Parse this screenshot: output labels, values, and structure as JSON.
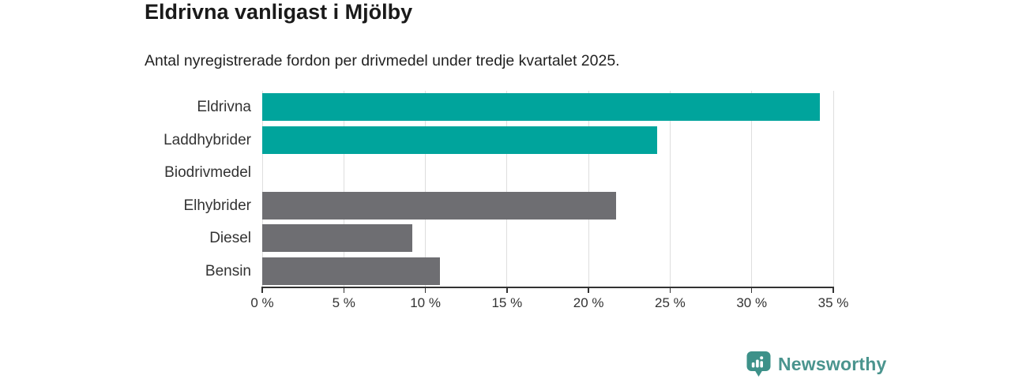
{
  "header": {
    "title": "Eldrivna vanligast i Mjölby",
    "subtitle": "Antal nyregistrerade fordon per drivmedel under tredje kvartalet 2025."
  },
  "chart_data": {
    "type": "bar",
    "orientation": "horizontal",
    "title": "Eldrivna vanligast i Mjölby",
    "subtitle": "Antal nyregistrerade fordon per drivmedel under tredje kvartalet 2025.",
    "categories": [
      "Eldrivna",
      "Laddhybrider",
      "Biodrivmedel",
      "Elhybrider",
      "Diesel",
      "Bensin"
    ],
    "values": [
      34.2,
      24.2,
      0,
      21.7,
      9.2,
      10.9
    ],
    "unit": "%",
    "xlim": [
      0,
      35
    ],
    "x_ticks": [
      0,
      5,
      10,
      15,
      20,
      25,
      30,
      35
    ],
    "x_tick_labels": [
      "0 %",
      "5 %",
      "10 %",
      "15 %",
      "20 %",
      "25 %",
      "30 %",
      "35 %"
    ],
    "grid": true,
    "legend": false,
    "bar_colors": [
      "#00a49c",
      "#00a49c",
      "#00a49c",
      "#6e6e72",
      "#6e6e72",
      "#6e6e72"
    ]
  },
  "branding": {
    "logo_text": "Newsworthy",
    "icon": "newsworthy-chart-bubble-icon"
  },
  "colors": {
    "c-accent": "#00a49c",
    "c-neutral": "#6e6e72",
    "c-title": "#1a1a1a",
    "c-subtitle": "#222222",
    "c-text": "#333333",
    "c-axis": "#333333",
    "c-grid": "#dedede",
    "c-logo": "#4a948e",
    "c-icon": "#3d9189"
  }
}
